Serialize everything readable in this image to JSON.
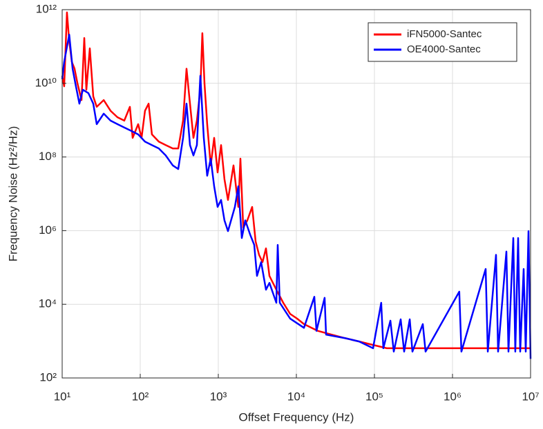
{
  "chart_data": {
    "type": "line",
    "xlabel": "Offset Frequency (Hz)",
    "ylabel": "Frequency Noise (Hz²/Hz)",
    "xscale": "log",
    "yscale": "log",
    "grid": true,
    "legend": "upper right",
    "xlim": [
      10,
      10000000
    ],
    "ylim": [
      100,
      1000000000000
    ],
    "xticks": [
      {
        "value": 10,
        "label": "10¹"
      },
      {
        "value": 100,
        "label": "10²"
      },
      {
        "value": 1000,
        "label": "10³"
      },
      {
        "value": 10000,
        "label": "10⁴"
      },
      {
        "value": 100000,
        "label": "10⁵"
      },
      {
        "value": 1000000,
        "label": "10⁶"
      },
      {
        "value": 10000000,
        "label": "10⁷"
      }
    ],
    "yticks": [
      {
        "value": 100,
        "label": "10²"
      },
      {
        "value": 10000,
        "label": "10⁴"
      },
      {
        "value": 1000000,
        "label": "10⁶"
      },
      {
        "value": 100000000,
        "label": "10⁸"
      },
      {
        "value": 10000000000,
        "label": "10¹⁰"
      },
      {
        "value": 1000000000000,
        "label": "10¹²"
      }
    ],
    "series": [
      {
        "name": "iFN5000-Santec",
        "color": "#ff0000",
        "x": [
          10,
          10.6,
          11.5,
          12.3,
          13.3,
          14.4,
          15.7,
          17.7,
          19.2,
          20.4,
          22.6,
          25,
          27.7,
          34,
          41.6,
          51,
          62.5,
          73.6,
          80,
          94,
          104,
          115,
          128,
          141,
          173,
          212,
          261,
          307,
          354,
          392,
          434,
          480,
          532,
          589,
          625,
          665,
          721,
          800,
          885,
          980,
          1085,
          1200,
          1330,
          1565,
          1805,
          1920,
          2085,
          2355,
          2715,
          3005,
          3330,
          3685,
          4080,
          4520,
          5540,
          6790,
          8320,
          10200,
          12500,
          18800,
          28300,
          42500,
          63800,
          96000,
          144000,
          326000,
          903000,
          2500000,
          5650000,
          10000000
        ],
        "values": [
          16000000000,
          8300000000,
          840000000000,
          140000000000,
          38000000000,
          25000000000,
          10000000000,
          3500000000,
          170000000000,
          6700000000,
          89000000000,
          4400000000,
          2300000000,
          3500000000,
          1800000000,
          1200000000,
          970000000,
          2300000000,
          330000000,
          780000000,
          330000000,
          1800000000,
          2800000000,
          410000000,
          260000000,
          210000000,
          170000000,
          170000000,
          970000000,
          25000000000,
          2800000000,
          330000000,
          970000000,
          6700000000,
          230000000000,
          10000000000,
          780000000,
          59000000,
          330000000,
          38000000,
          210000000,
          25000000,
          6800000,
          59000000,
          4400000,
          90000000,
          1200000,
          1900000,
          4400000,
          510000,
          220000,
          140000,
          330000,
          59000,
          25000,
          11000,
          5500,
          4100,
          2900,
          1900,
          1500,
          1200,
          980,
          790,
          640,
          640,
          640,
          640,
          640,
          640
        ]
      },
      {
        "name": "OE4000-Santec",
        "color": "#0000ff",
        "x": [
          10,
          10.6,
          12.3,
          13.6,
          15,
          16.6,
          18.4,
          21.7,
          25,
          27.7,
          34,
          41.6,
          51,
          62.5,
          76.7,
          94,
          115,
          141,
          173,
          212,
          261,
          307,
          354,
          392,
          434,
          480,
          532,
          589,
          652,
          721,
          800,
          885,
          980,
          1085,
          1200,
          1330,
          1630,
          1805,
          2000,
          2215,
          2555,
          2885,
          3130,
          3540,
          4080,
          4520,
          5540,
          5770,
          6130,
          8320,
          12500,
          17000,
          18100,
          23000,
          24000,
          42500,
          63800,
          96000,
          122000,
          130000,
          160000,
          177000,
          217000,
          240000,
          283000,
          307000,
          416000,
          452000,
          1220000,
          1300000,
          2660000,
          2830000,
          3610000,
          3840000,
          4900000,
          5210000,
          6010000,
          6380000,
          6930000,
          7360000,
          8160000,
          8670000,
          9400000,
          10000000
        ],
        "values": [
          13000000000,
          38000000000,
          210000000000,
          25000000000,
          8300000000,
          2800000000,
          6700000000,
          5400000000,
          2800000000,
          780000000,
          1500000000,
          970000000,
          780000000,
          630000000,
          510000000,
          410000000,
          260000000,
          210000000,
          170000000,
          110000000,
          59000000,
          47000000,
          330000000,
          2800000000,
          210000000,
          110000000,
          210000000,
          16000000000,
          330000000,
          31000000,
          90000000,
          16000000,
          4400000,
          6800000,
          1900000,
          970000,
          4400000,
          16000000,
          630000,
          1900000,
          790000,
          410000,
          59000,
          140000,
          25000,
          38000,
          11000,
          410000,
          11000,
          4100,
          2300,
          16000,
          1900,
          15000,
          1500,
          1200,
          980,
          640,
          11000,
          640,
          3600,
          520,
          3900,
          520,
          3900,
          520,
          2900,
          520,
          22000,
          520,
          91000,
          520,
          220000,
          520,
          270000,
          520,
          630000,
          520,
          630000,
          520,
          91000,
          520,
          970000,
          330
        ]
      }
    ]
  }
}
